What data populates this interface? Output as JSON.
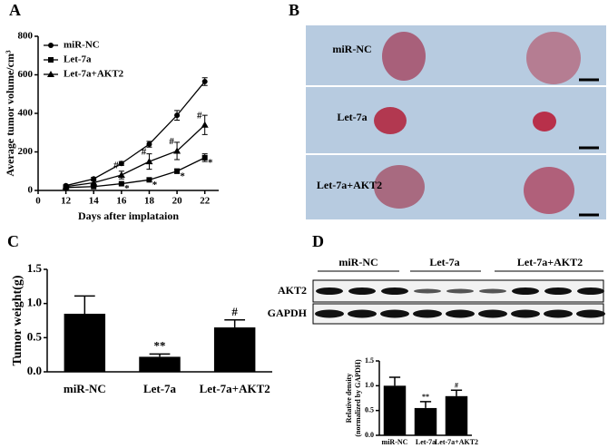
{
  "chart_data": [
    {
      "type": "line",
      "panel_label": "A",
      "xlabel": "Days after implataion",
      "ylabel": "Average tumor volume/cm³",
      "x": [
        12,
        14,
        16,
        18,
        20,
        22
      ],
      "xlim": [
        0,
        23
      ],
      "x_axis_break": [
        0,
        10
      ],
      "xticks": [
        0,
        12,
        14,
        16,
        18,
        20,
        22
      ],
      "ylim": [
        0,
        800
      ],
      "yticks": [
        0,
        200,
        400,
        600,
        800
      ],
      "legend": "upper left",
      "series": [
        {
          "name": "miR-NC",
          "color": "#000000",
          "marker": "circle",
          "values": [
            25,
            60,
            140,
            240,
            390,
            565
          ],
          "errors": [
            5,
            8,
            10,
            15,
            25,
            20
          ],
          "point_labels": [
            null,
            null,
            null,
            null,
            null,
            null
          ]
        },
        {
          "name": "Let-7a",
          "color": "#000000",
          "marker": "square",
          "values": [
            15,
            20,
            35,
            55,
            100,
            170
          ],
          "errors": [
            3,
            4,
            5,
            8,
            12,
            20
          ],
          "point_labels": [
            null,
            null,
            "*",
            "*",
            "*",
            "*"
          ]
        },
        {
          "name": "Let-7a+AKT2",
          "color": "#000000",
          "marker": "triangle",
          "values": [
            20,
            40,
            80,
            150,
            205,
            340
          ],
          "errors": [
            5,
            10,
            20,
            40,
            45,
            50
          ],
          "point_labels": [
            null,
            null,
            "#",
            "#",
            "#",
            "#"
          ]
        }
      ]
    },
    {
      "type": "bar",
      "panel_label": "C",
      "ylabel": "Tumor weight(g)",
      "categories": [
        "miR-NC",
        "Let-7a",
        "Let-7a+AKT2"
      ],
      "values": [
        0.85,
        0.22,
        0.65
      ],
      "errors": [
        0.26,
        0.04,
        0.11
      ],
      "bar_labels": [
        null,
        "**",
        "#"
      ],
      "color": "#000000",
      "ylim": [
        0,
        1.5
      ],
      "yticks": [
        {
          "value": 0,
          "label": "0.0"
        },
        0.5,
        {
          "value": 1,
          "label": "1.0"
        },
        1.5
      ]
    },
    {
      "type": "bar",
      "ylabel": [
        "Relative density",
        "(normalized by GAPDH)"
      ],
      "categories": [
        "miR-NC",
        "Let-7a",
        "Let-7a+AKT2"
      ],
      "values": [
        1.0,
        0.55,
        0.79
      ],
      "errors": [
        0.17,
        0.13,
        0.12
      ],
      "bar_labels": [
        null,
        "**",
        "#"
      ],
      "color": "#000000",
      "ylim": [
        0,
        1.5
      ],
      "yticks": [
        {
          "value": 0,
          "label": "0.0"
        },
        0.5,
        {
          "value": 1,
          "label": "1.0"
        },
        1.5
      ]
    }
  ],
  "photo": {
    "label": "B",
    "rows": [
      "miR-NC",
      "Let-7a",
      "Let-7a+AKT2"
    ]
  },
  "western_blot": {
    "label": "D",
    "groups": [
      "miR-NC",
      "Let-7a",
      "Let-7a+AKT2"
    ],
    "rows": [
      "AKT2",
      "GAPDH"
    ]
  }
}
